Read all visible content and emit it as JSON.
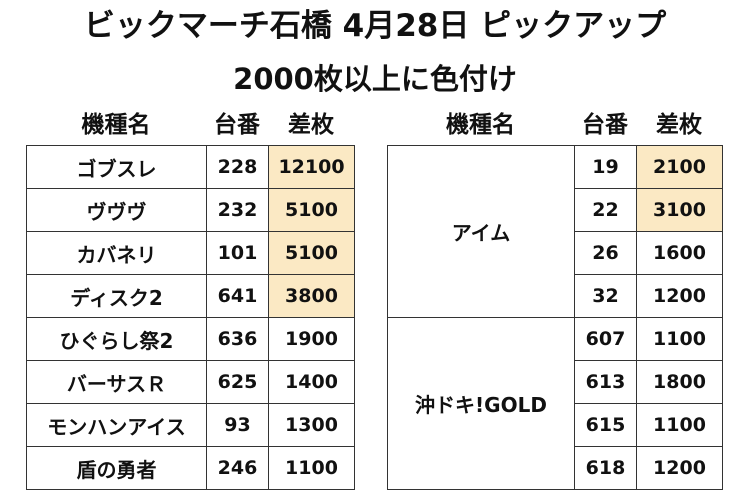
{
  "title": {
    "line1": "ビックマーチ石橋 4月28日  ピックアップ",
    "line2": "2000枚以上に色付け"
  },
  "headers": {
    "machine": "機種名",
    "number": "台番",
    "diff": "差枚"
  },
  "highlight_color": "#fbe9c4",
  "left_table": [
    {
      "machine": "ゴブスレ",
      "number": "228",
      "diff": "12100",
      "highlight": true
    },
    {
      "machine": "ヴヴヴ",
      "number": "232",
      "diff": "5100",
      "highlight": true
    },
    {
      "machine": "カバネリ",
      "number": "101",
      "diff": "5100",
      "highlight": true
    },
    {
      "machine": "ディスク2",
      "number": "641",
      "diff": "3800",
      "highlight": true
    },
    {
      "machine": "ひぐらし祭2",
      "number": "636",
      "diff": "1900",
      "highlight": false
    },
    {
      "machine": "バーサスＲ",
      "number": "625",
      "diff": "1400",
      "highlight": false
    },
    {
      "machine": "モンハンアイス",
      "number": "93",
      "diff": "1300",
      "highlight": false
    },
    {
      "machine": "盾の勇者",
      "number": "246",
      "diff": "1100",
      "highlight": false
    }
  ],
  "right_table": [
    {
      "machine": "アイム",
      "rows": [
        {
          "number": "19",
          "diff": "2100",
          "highlight": true
        },
        {
          "number": "22",
          "diff": "3100",
          "highlight": true
        },
        {
          "number": "26",
          "diff": "1600",
          "highlight": false
        },
        {
          "number": "32",
          "diff": "1200",
          "highlight": false
        }
      ]
    },
    {
      "machine": "沖ドキ!GOLD",
      "rows": [
        {
          "number": "607",
          "diff": "1100",
          "highlight": false
        },
        {
          "number": "613",
          "diff": "1800",
          "highlight": false
        },
        {
          "number": "615",
          "diff": "1100",
          "highlight": false
        },
        {
          "number": "618",
          "diff": "1200",
          "highlight": false
        }
      ]
    }
  ]
}
